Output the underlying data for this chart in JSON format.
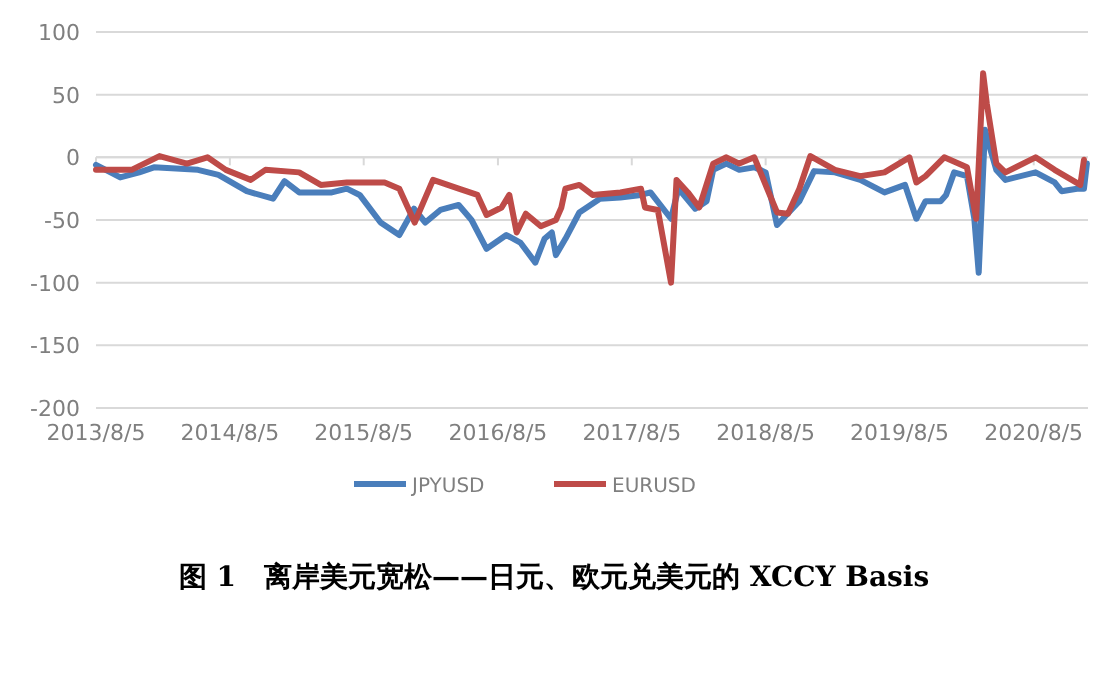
{
  "chart_data": {
    "type": "line",
    "title": "图 1　离岸美元宽松——日元、欧元兑美元的 XCCY Basis",
    "xlim": [
      "2013-08-05",
      "2020-12-31"
    ],
    "xticks": [
      {
        "value": "2013-08-05",
        "label": "2013/8/5"
      },
      {
        "value": "2014-08-05",
        "label": "2014/8/5"
      },
      {
        "value": "2015-08-05",
        "label": "2015/8/5"
      },
      {
        "value": "2016-08-05",
        "label": "2016/8/5"
      },
      {
        "value": "2017-08-05",
        "label": "2017/8/5"
      },
      {
        "value": "2018-08-05",
        "label": "2018/8/5"
      },
      {
        "value": "2019-08-05",
        "label": "2019/8/5"
      },
      {
        "value": "2020-08-05",
        "label": "2020/8/5"
      }
    ],
    "ylim": [
      -200,
      100
    ],
    "yticks": [
      -200,
      -150,
      -100,
      -50,
      0,
      50,
      100
    ],
    "grid": "y",
    "legend": "bottom",
    "marker": "none",
    "line_style": "solid",
    "series": [
      {
        "name": "JPYUSD",
        "color": "#4a7ebb",
        "x": [
          "2013-08-05",
          "2013-10-10",
          "2013-12-01",
          "2014-01-10",
          "2014-05-10",
          "2014-07-05",
          "2014-09-20",
          "2014-12-01",
          "2015-01-01",
          "2015-02-10",
          "2015-05-10",
          "2015-06-20",
          "2015-07-25",
          "2015-09-20",
          "2015-11-10",
          "2015-12-20",
          "2016-01-20",
          "2016-03-01",
          "2016-04-20",
          "2016-05-25",
          "2016-07-05",
          "2016-08-28",
          "2016-10-05",
          "2016-11-15",
          "2016-12-10",
          "2016-12-30",
          "2017-01-10",
          "2017-02-05",
          "2017-03-15",
          "2017-05-10",
          "2017-07-05",
          "2017-08-30",
          "2017-09-25",
          "2017-11-20",
          "2017-12-10",
          "2018-01-25",
          "2018-02-25",
          "2018-03-15",
          "2018-04-20",
          "2018-05-25",
          "2018-07-05",
          "2018-08-05",
          "2018-09-05",
          "2018-11-05",
          "2018-12-15",
          "2019-02-10",
          "2019-04-20",
          "2019-06-25",
          "2019-08-20",
          "2019-09-20",
          "2019-10-15",
          "2019-11-25",
          "2019-12-10",
          "2020-01-01",
          "2020-02-05",
          "2020-02-25",
          "2020-03-08",
          "2020-03-25",
          "2020-04-10",
          "2020-04-25",
          "2020-05-20",
          "2020-08-10",
          "2020-10-01",
          "2020-10-20",
          "2020-12-01",
          "2020-12-20",
          "2020-12-28"
        ],
        "values": [
          -6,
          -16,
          -12,
          -8,
          -10,
          -14,
          -27,
          -33,
          -19,
          -28,
          -28,
          -25,
          -30,
          -52,
          -62,
          -41,
          -52,
          -42,
          -38,
          -50,
          -73,
          -62,
          -68,
          -84,
          -65,
          -60,
          -78,
          -65,
          -44,
          -33,
          -32,
          -30,
          -28,
          -49,
          -25,
          -41,
          -35,
          -10,
          -5,
          -10,
          -8,
          -12,
          -54,
          -35,
          -11,
          -12,
          -18,
          -28,
          -22,
          -49,
          -35,
          -35,
          -30,
          -12,
          -15,
          -49,
          -92,
          22,
          5,
          -10,
          -18,
          -12,
          -20,
          -27,
          -25,
          -25,
          -5
        ]
      },
      {
        "name": "EURUSD",
        "color": "#be4b48",
        "x": [
          "2013-08-05",
          "2013-11-10",
          "2014-01-25",
          "2014-04-10",
          "2014-06-05",
          "2014-07-25",
          "2014-10-01",
          "2014-11-10",
          "2015-02-10",
          "2015-04-10",
          "2015-06-20",
          "2015-10-01",
          "2015-11-10",
          "2015-12-22",
          "2016-02-10",
          "2016-04-20",
          "2016-06-10",
          "2016-07-05",
          "2016-08-15",
          "2016-09-05",
          "2016-09-25",
          "2016-10-20",
          "2016-11-30",
          "2017-01-10",
          "2017-01-25",
          "2017-02-05",
          "2017-03-15",
          "2017-04-20",
          "2017-07-05",
          "2017-08-30",
          "2017-09-10",
          "2017-10-15",
          "2017-11-20",
          "2017-12-05",
          "2018-01-05",
          "2018-02-05",
          "2018-03-15",
          "2018-04-20",
          "2018-05-25",
          "2018-07-05",
          "2018-09-05",
          "2018-10-05",
          "2018-11-05",
          "2018-12-05",
          "2019-02-10",
          "2019-04-20",
          "2019-06-25",
          "2019-09-01",
          "2019-09-20",
          "2019-10-15",
          "2019-12-05",
          "2020-02-05",
          "2020-03-01",
          "2020-03-20",
          "2020-03-30",
          "2020-04-25",
          "2020-05-20",
          "2020-08-10",
          "2020-10-01",
          "2020-12-10",
          "2020-12-20"
        ],
        "values": [
          -10,
          -10,
          1,
          -5,
          0,
          -10,
          -18,
          -10,
          -12,
          -22,
          -20,
          -20,
          -25,
          -52,
          -18,
          -25,
          -30,
          -46,
          -40,
          -30,
          -60,
          -45,
          -55,
          -50,
          -40,
          -25,
          -22,
          -30,
          -28,
          -25,
          -40,
          -42,
          -100,
          -18,
          -28,
          -40,
          -5,
          0,
          -5,
          0,
          -44,
          -45,
          -25,
          1,
          -10,
          -15,
          -12,
          0,
          -20,
          -15,
          0,
          -8,
          -49,
          67,
          43,
          -5,
          -12,
          0,
          -10,
          -22,
          -2
        ]
      }
    ]
  }
}
